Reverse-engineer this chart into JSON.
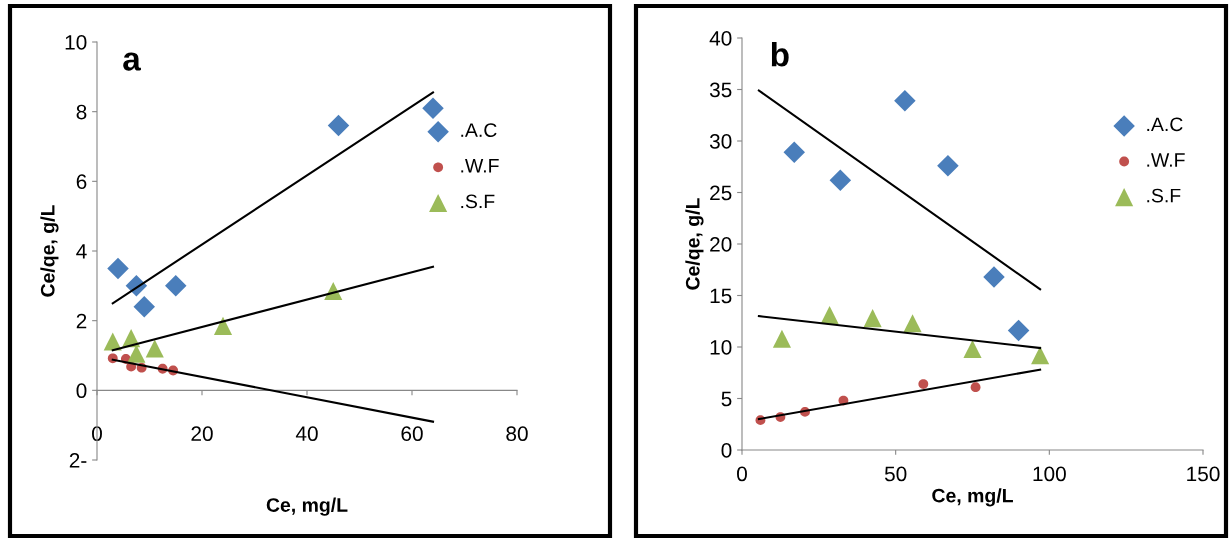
{
  "chart_data": [
    {
      "type": "scatter",
      "annotations": [
        "a"
      ],
      "xlabel": "Ce, mg/L",
      "ylabel": "Ce/qe, g/L",
      "xlim": [
        0,
        80
      ],
      "xticks": [
        0,
        20,
        40,
        60,
        80
      ],
      "ylim": [
        -2,
        10
      ],
      "yticks": [
        {
          "value": -2,
          "label": "2-"
        },
        0,
        2,
        4,
        6,
        8,
        10
      ],
      "grid": false,
      "legend": "right",
      "series": [
        {
          "name": ".A.C",
          "color": "#4a7ebb",
          "marker": "diamond",
          "x": [
            4,
            7.5,
            9,
            15,
            46,
            64
          ],
          "values": [
            3.5,
            3.0,
            2.4,
            3.0,
            7.6,
            8.1
          ]
        },
        {
          "name": ".W.F",
          "color": "#c0504d",
          "marker": "circle",
          "x": [
            3,
            5.5,
            6.5,
            8.5,
            12.5,
            14.5
          ],
          "values": [
            0.92,
            0.9,
            0.68,
            0.65,
            0.62,
            0.57
          ]
        },
        {
          "name": ".S.F",
          "color": "#9bbb59",
          "marker": "triangle",
          "x": [
            3,
            6.5,
            7.5,
            11,
            24,
            45
          ],
          "values": [
            1.4,
            1.5,
            1.05,
            1.2,
            1.85,
            2.85
          ]
        },
        {
          "type": "line",
          "color": "#000000",
          "marker": "none",
          "x": [
            3,
            64
          ],
          "values": [
            2.5,
            8.55
          ]
        },
        {
          "type": "line",
          "color": "#000000",
          "marker": "none",
          "x": [
            3,
            64
          ],
          "values": [
            0.88,
            -0.9
          ]
        },
        {
          "type": "line",
          "color": "#000000",
          "marker": "none",
          "x": [
            3,
            64
          ],
          "values": [
            1.15,
            3.55
          ]
        }
      ]
    },
    {
      "type": "scatter",
      "annotations": [
        "b"
      ],
      "xlabel": "Ce, mg/L",
      "ylabel": "Ce/qe, g/L",
      "xlim": [
        0,
        150
      ],
      "xticks": [
        0,
        50,
        100,
        150
      ],
      "ylim": [
        0,
        40
      ],
      "yticks": [
        0,
        5,
        10,
        15,
        20,
        25,
        30,
        35,
        40
      ],
      "grid": false,
      "legend": "right",
      "series": [
        {
          "name": ".A.C",
          "color": "#4a7ebb",
          "marker": "diamond",
          "x": [
            17,
            32,
            53,
            67,
            82,
            90
          ],
          "values": [
            28.9,
            26.2,
            33.9,
            27.6,
            16.8,
            11.6
          ]
        },
        {
          "name": ".W.F",
          "color": "#c0504d",
          "marker": "circle",
          "x": [
            6,
            12.5,
            20.5,
            33,
            59,
            76
          ],
          "values": [
            2.9,
            3.2,
            3.7,
            4.8,
            6.4,
            6.1
          ]
        },
        {
          "name": ".S.F",
          "color": "#9bbb59",
          "marker": "triangle",
          "x": [
            13,
            28.5,
            42.5,
            55.5,
            75,
            97
          ],
          "values": [
            10.8,
            13.1,
            12.8,
            12.3,
            9.8,
            9.2
          ]
        },
        {
          "type": "line",
          "color": "#000000",
          "marker": "none",
          "x": [
            5.5,
            97
          ],
          "values": [
            34.9,
            15.6
          ]
        },
        {
          "type": "line",
          "color": "#000000",
          "marker": "none",
          "x": [
            5.5,
            97
          ],
          "values": [
            13.0,
            9.9
          ]
        },
        {
          "type": "line",
          "color": "#000000",
          "marker": "none",
          "x": [
            5.5,
            97
          ],
          "values": [
            3.0,
            7.8
          ]
        }
      ]
    }
  ]
}
